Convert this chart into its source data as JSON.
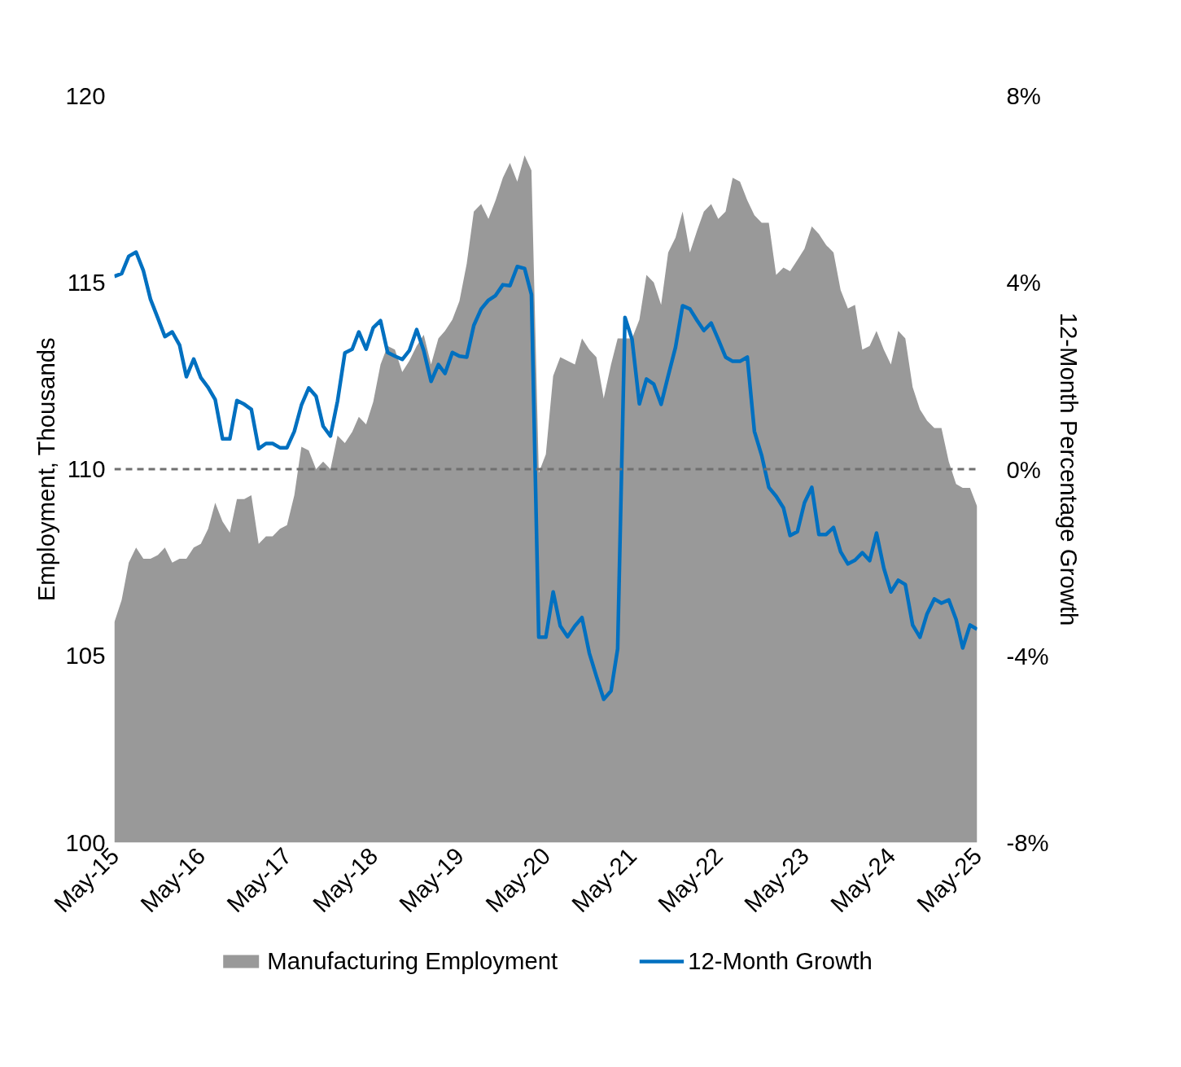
{
  "chart_data": {
    "type": "area",
    "ylabel": "Employment, Thousands",
    "y2label": "12-Month Percentage Growth",
    "x": [
      "2015-05",
      "2015-06",
      "2015-07",
      "2015-08",
      "2015-09",
      "2015-10",
      "2015-11",
      "2015-12",
      "2016-01",
      "2016-02",
      "2016-03",
      "2016-04",
      "2016-05",
      "2016-06",
      "2016-07",
      "2016-08",
      "2016-09",
      "2016-10",
      "2016-11",
      "2016-12",
      "2017-01",
      "2017-02",
      "2017-03",
      "2017-04",
      "2017-05",
      "2017-06",
      "2017-07",
      "2017-08",
      "2017-09",
      "2017-10",
      "2017-11",
      "2017-12",
      "2018-01",
      "2018-02",
      "2018-03",
      "2018-04",
      "2018-05",
      "2018-06",
      "2018-07",
      "2018-08",
      "2018-09",
      "2018-10",
      "2018-11",
      "2018-12",
      "2019-01",
      "2019-02",
      "2019-03",
      "2019-04",
      "2019-05",
      "2019-06",
      "2019-07",
      "2019-08",
      "2019-09",
      "2019-10",
      "2019-11",
      "2019-12",
      "2020-01",
      "2020-02",
      "2020-03",
      "2020-04",
      "2020-05",
      "2020-06",
      "2020-07",
      "2020-08",
      "2020-09",
      "2020-10",
      "2020-11",
      "2020-12",
      "2021-01",
      "2021-02",
      "2021-03",
      "2021-04",
      "2021-05",
      "2021-06",
      "2021-07",
      "2021-08",
      "2021-09",
      "2021-10",
      "2021-11",
      "2021-12",
      "2022-01",
      "2022-02",
      "2022-03",
      "2022-04",
      "2022-05",
      "2022-06",
      "2022-07",
      "2022-08",
      "2022-09",
      "2022-10",
      "2022-11",
      "2022-12",
      "2023-01",
      "2023-02",
      "2023-03",
      "2023-04",
      "2023-05",
      "2023-06",
      "2023-07",
      "2023-08",
      "2023-09",
      "2023-10",
      "2023-11",
      "2023-12",
      "2024-01",
      "2024-02",
      "2024-03",
      "2024-04",
      "2024-05",
      "2024-06",
      "2024-07",
      "2024-08",
      "2024-09",
      "2024-10",
      "2024-11",
      "2024-12",
      "2025-01",
      "2025-02",
      "2025-03",
      "2025-04",
      "2025-05"
    ],
    "series": [
      {
        "name": "Manufacturing Employment",
        "type": "area",
        "color": "#999999",
        "values": [
          105.9,
          106.5,
          107.5,
          107.9,
          107.6,
          107.6,
          107.7,
          107.9,
          107.5,
          107.6,
          107.6,
          107.9,
          108.0,
          108.4,
          109.1,
          108.6,
          108.3,
          109.2,
          109.2,
          109.3,
          108.0,
          108.2,
          108.2,
          108.4,
          108.5,
          109.3,
          110.6,
          110.5,
          110.0,
          110.2,
          110.0,
          110.9,
          110.7,
          111.0,
          111.4,
          111.2,
          111.8,
          112.8,
          113.3,
          113.2,
          112.6,
          112.9,
          113.3,
          113.6,
          112.8,
          113.5,
          113.7,
          114.0,
          114.5,
          115.5,
          116.9,
          117.1,
          116.7,
          117.2,
          117.8,
          118.2,
          117.7,
          118.4,
          118.0,
          109.9,
          110.4,
          112.5,
          113.0,
          112.9,
          112.8,
          113.5,
          113.2,
          113.0,
          111.9,
          112.8,
          113.5,
          113.5,
          113.5,
          114.0,
          115.2,
          115.0,
          114.4,
          115.8,
          116.2,
          116.9,
          115.8,
          116.4,
          116.9,
          117.1,
          116.7,
          116.9,
          117.8,
          117.7,
          117.2,
          116.8,
          116.6,
          116.6,
          115.2,
          115.4,
          115.3,
          115.6,
          115.9,
          116.5,
          116.3,
          116.0,
          115.8,
          114.8,
          114.3,
          114.4,
          113.2,
          113.3,
          113.7,
          113.2,
          112.8,
          113.7,
          113.5,
          112.2,
          111.6,
          111.3,
          111.1,
          111.1,
          110.2,
          109.6,
          109.5,
          109.5,
          109.0
        ]
      },
      {
        "name": "12-Month Growth",
        "type": "line",
        "axis": "y2",
        "color": "#0070c0",
        "values": [
          4.13,
          4.19,
          4.56,
          4.65,
          4.25,
          3.64,
          3.24,
          2.84,
          2.94,
          2.66,
          1.98,
          2.36,
          1.96,
          1.75,
          1.49,
          0.65,
          0.65,
          1.47,
          1.39,
          1.28,
          0.44,
          0.55,
          0.55,
          0.46,
          0.46,
          0.81,
          1.37,
          1.74,
          1.56,
          0.92,
          0.71,
          1.46,
          2.49,
          2.57,
          2.94,
          2.57,
          3.03,
          3.18,
          2.5,
          2.42,
          2.35,
          2.54,
          2.99,
          2.54,
          1.88,
          2.24,
          2.05,
          2.5,
          2.42,
          2.4,
          3.08,
          3.43,
          3.62,
          3.72,
          3.95,
          3.93,
          4.34,
          4.3,
          3.74,
          -3.6,
          -3.6,
          -2.63,
          -3.36,
          -3.59,
          -3.36,
          -3.18,
          -3.94,
          -4.44,
          -4.93,
          -4.75,
          -3.85,
          3.25,
          2.78,
          1.4,
          1.93,
          1.82,
          1.39,
          2.0,
          2.61,
          3.5,
          3.43,
          3.18,
          2.97,
          3.13,
          2.78,
          2.4,
          2.31,
          2.31,
          2.4,
          0.81,
          0.29,
          -0.39,
          -0.58,
          -0.83,
          -1.42,
          -1.34,
          -0.72,
          -0.39,
          -1.4,
          -1.4,
          -1.25,
          -1.77,
          -2.03,
          -1.95,
          -1.79,
          -1.96,
          -1.37,
          -2.12,
          -2.63,
          -2.38,
          -2.47,
          -3.34,
          -3.6,
          -3.1,
          -2.78,
          -2.87,
          -2.8,
          -3.22,
          -3.83,
          -3.34,
          -3.43
        ]
      }
    ],
    "xlim": [
      "2015-05",
      "2025-05"
    ],
    "xticks": [
      {
        "value": "2015-05",
        "label": "May-15"
      },
      {
        "value": "2016-05",
        "label": "May-16"
      },
      {
        "value": "2017-05",
        "label": "May-17"
      },
      {
        "value": "2018-05",
        "label": "May-18"
      },
      {
        "value": "2019-05",
        "label": "May-19"
      },
      {
        "value": "2020-05",
        "label": "May-20"
      },
      {
        "value": "2021-05",
        "label": "May-21"
      },
      {
        "value": "2022-05",
        "label": "May-22"
      },
      {
        "value": "2023-05",
        "label": "May-23"
      },
      {
        "value": "2024-05",
        "label": "May-24"
      },
      {
        "value": "2025-05",
        "label": "May-25"
      }
    ],
    "ylim": [
      100,
      120
    ],
    "yticks": [
      100,
      105,
      110,
      115,
      120
    ],
    "y2lim": [
      -8,
      8
    ],
    "y2ticks": [
      {
        "value": -8,
        "label": "-8%"
      },
      {
        "value": -4,
        "label": "-4%"
      },
      {
        "value": 0,
        "label": "0%"
      },
      {
        "value": 4,
        "label": "4%"
      },
      {
        "value": 8,
        "label": "8%"
      }
    ],
    "ref_lines": [
      {
        "axis": "y2",
        "value": 0,
        "color": "#707070",
        "line_style": "dashed"
      }
    ],
    "grid": false,
    "legend": "bottom"
  }
}
